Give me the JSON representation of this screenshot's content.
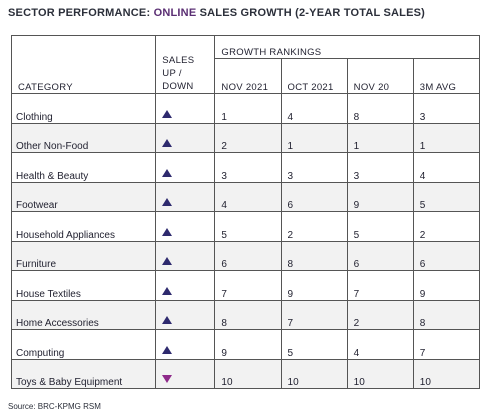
{
  "title": {
    "part1": "SECTOR PERFORMANCE: ",
    "part2": "ONLINE",
    "part3": " SALES GROWTH ",
    "part4": "(2-YEAR TOTAL SALES)"
  },
  "colors": {
    "accent_purple": "#5a2e73",
    "triangle_up": "#2e2a6e",
    "triangle_down": "#8e2a8a"
  },
  "table": {
    "category_header": "CATEGORY",
    "direction_header_line1": "SALES",
    "direction_header_line2": "UP /",
    "direction_header_line3": "DOWN",
    "group_header": "GROWTH RANKINGS",
    "sub_headers": [
      "NOV 2021",
      "OCT 2021",
      "NOV 20",
      "3M AVG"
    ],
    "rows": [
      {
        "category": "Clothing",
        "direction": "up",
        "values": [
          "1",
          "4",
          "8",
          "3"
        ]
      },
      {
        "category": "Other Non-Food",
        "direction": "up",
        "values": [
          "2",
          "1",
          "1",
          "1"
        ]
      },
      {
        "category": "Health & Beauty",
        "direction": "up",
        "values": [
          "3",
          "3",
          "3",
          "4"
        ]
      },
      {
        "category": "Footwear",
        "direction": "up",
        "values": [
          "4",
          "6",
          "9",
          "5"
        ]
      },
      {
        "category": "Household Appliances",
        "direction": "up",
        "values": [
          "5",
          "2",
          "5",
          "2"
        ]
      },
      {
        "category": "Furniture",
        "direction": "up",
        "values": [
          "6",
          "8",
          "6",
          "6"
        ]
      },
      {
        "category": "House Textiles",
        "direction": "up",
        "values": [
          "7",
          "9",
          "7",
          "9"
        ]
      },
      {
        "category": "Home Accessories",
        "direction": "up",
        "values": [
          "8",
          "7",
          "2",
          "8"
        ]
      },
      {
        "category": "Computing",
        "direction": "up",
        "values": [
          "9",
          "5",
          "4",
          "7"
        ]
      },
      {
        "category": "Toys & Baby Equipment",
        "direction": "down",
        "values": [
          "10",
          "10",
          "10",
          "10"
        ]
      }
    ]
  },
  "source": "Source: BRC-KPMG RSM"
}
